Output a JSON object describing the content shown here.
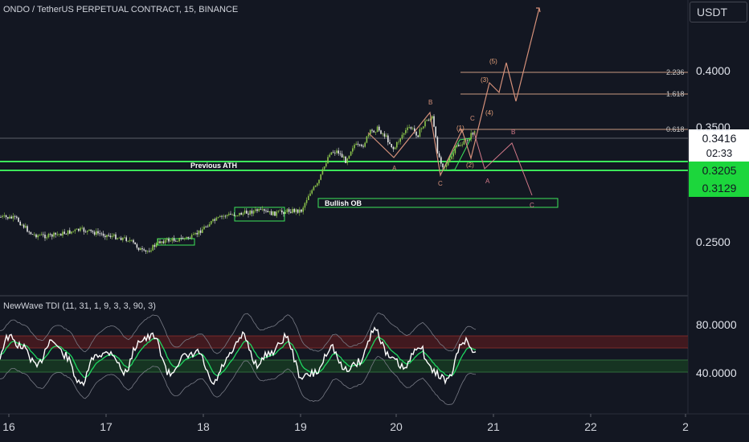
{
  "header": {
    "chart_title": "ONDO / TetherUS PERPETUAL CONTRACT, 15, BINANCE",
    "currency": "USDT",
    "indicator": "NewWave TDI (11, 31, 1, 9, 3, 3, 90, 3)"
  },
  "price_axis": {
    "ticks": [
      "0.4000",
      "0.3500",
      "0.2500"
    ],
    "current_price": "0.3416",
    "countdown": "02:33",
    "level_1": "0.3205",
    "level_2": "0.3129"
  },
  "indicator_axis": {
    "ticks": [
      "80.0000",
      "40.0000"
    ]
  },
  "time_axis": {
    "ticks": [
      "16",
      "17",
      "18",
      "19",
      "20",
      "21",
      "22",
      "2"
    ]
  },
  "annotations": {
    "previous_ath": "Previous ATH",
    "bullish_ob": "Bullish OB",
    "fib_2236": "2.236",
    "fib_1618": "1.618",
    "fib_0618": "0.618",
    "wave_1": "(1)",
    "wave_2": "(2)",
    "wave_3": "(3)",
    "wave_4": "(4)",
    "wave_5": "(5)",
    "wave_A1": "A",
    "wave_B1": "B",
    "wave_C1": "C",
    "wave_A2": "A",
    "wave_B2": "B",
    "wave_C2": "C",
    "wave_A3": "A",
    "wave_C3": "C"
  },
  "colors": {
    "background": "#131722",
    "candle_up": "#8bc34a",
    "candle_down": "#ffffff",
    "level_line": "#3ce65a",
    "badge_green": "#1cd63c",
    "projection": "#d4907a",
    "fib_line": "#c99a80"
  }
}
